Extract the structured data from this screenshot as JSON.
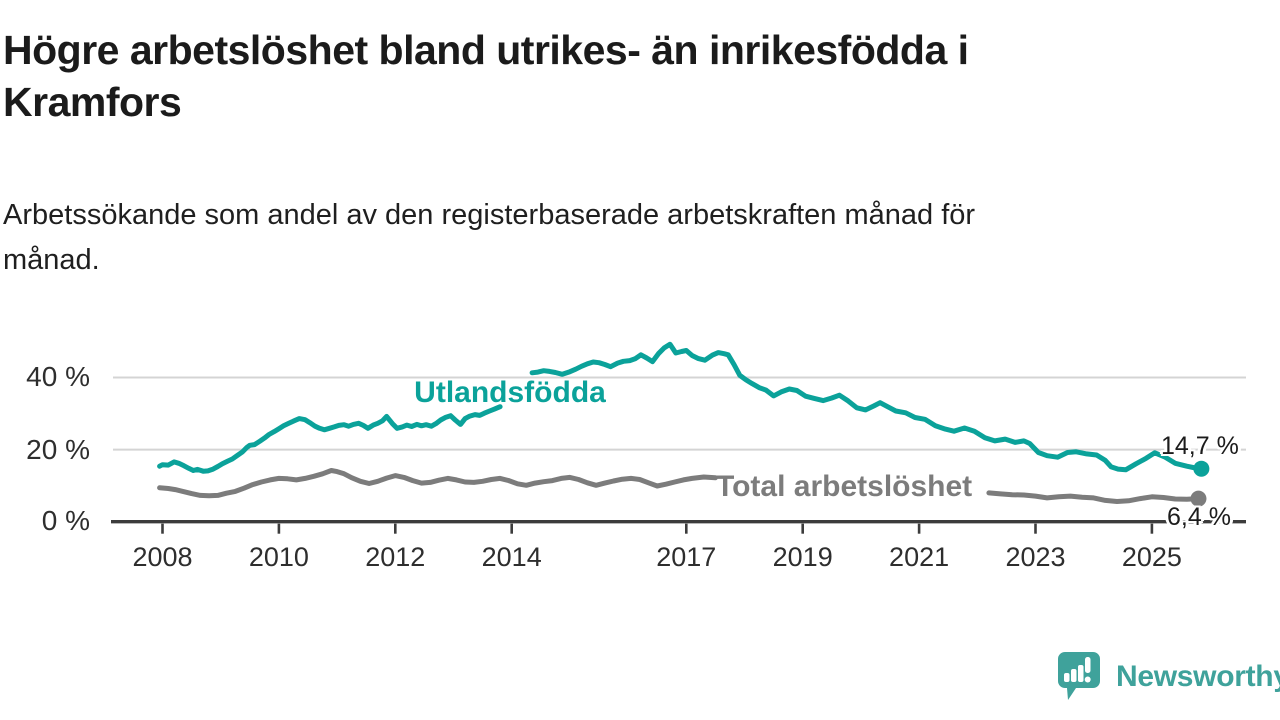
{
  "page": {
    "title_lines": [
      "Högre arbetslöshet bland utrikes- än inrikesfödda i",
      "Kramfors"
    ],
    "subtitle_lines": [
      "Arbetssökande som andel av den registerbaserade arbetskraften månad för",
      "månad."
    ]
  },
  "branding": {
    "logo_text": "Newsworthy",
    "logo_color": "#3fa29b",
    "logo_icon": "speech-bubble-bar-chart-exclamation"
  },
  "colors": {
    "series_foreign": "#0ba29a",
    "series_total": "#7c7c7c",
    "grid": "#d4d4d4",
    "axis": "#3c3c3c",
    "text": "#1c1c1c"
  },
  "chart_data": {
    "type": "line",
    "title": "Högre arbetslöshet bland utrikes- än inrikesfödda i Kramfors",
    "subtitle": "Arbetssökande som andel av den registerbaserade arbetskraften månad för månad.",
    "unit": "%",
    "grid": true,
    "legend_position": "inline-labels",
    "x_axis": {
      "range": [
        2007.6,
        2026.5
      ],
      "ticks": [
        2008,
        2010,
        2012,
        2014,
        2017,
        2019,
        2021,
        2023,
        2025
      ],
      "labels": [
        "2008",
        "2010",
        "2012",
        "2014",
        "2017",
        "2019",
        "2021",
        "2023",
        "2025"
      ]
    },
    "y_axis": {
      "range": [
        0,
        52
      ],
      "ticks": [
        {
          "value": 0,
          "label": "0 %"
        },
        {
          "value": 20,
          "label": "20 %"
        },
        {
          "value": 40,
          "label": "40 %"
        }
      ]
    },
    "series": [
      {
        "name": "Utlandsfödda",
        "color": "#0ba29a",
        "end_label": "14,7 %",
        "end_value": 14.7,
        "last_point": [
          2025.85,
          14.7
        ],
        "segments": [
          [
            [
              2007.95,
              15.4
            ],
            [
              2008.0,
              15.8
            ],
            [
              2008.1,
              15.7
            ],
            [
              2008.2,
              16.6
            ],
            [
              2008.28,
              16.2
            ],
            [
              2008.37,
              15.5
            ],
            [
              2008.45,
              14.8
            ],
            [
              2008.53,
              14.2
            ],
            [
              2008.6,
              14.5
            ],
            [
              2008.7,
              14.0
            ],
            [
              2008.78,
              14.1
            ],
            [
              2008.87,
              14.6
            ],
            [
              2008.95,
              15.3
            ],
            [
              2009.03,
              16.1
            ],
            [
              2009.12,
              16.8
            ],
            [
              2009.2,
              17.4
            ],
            [
              2009.28,
              18.3
            ],
            [
              2009.37,
              19.3
            ],
            [
              2009.45,
              20.6
            ],
            [
              2009.5,
              21.2
            ],
            [
              2009.58,
              21.4
            ],
            [
              2009.67,
              22.3
            ],
            [
              2009.75,
              23.2
            ],
            [
              2009.83,
              24.2
            ],
            [
              2009.92,
              25.0
            ],
            [
              2010.0,
              25.8
            ],
            [
              2010.08,
              26.6
            ],
            [
              2010.17,
              27.3
            ],
            [
              2010.25,
              27.9
            ],
            [
              2010.35,
              28.6
            ],
            [
              2010.45,
              28.3
            ],
            [
              2010.53,
              27.5
            ],
            [
              2010.62,
              26.5
            ],
            [
              2010.7,
              25.9
            ],
            [
              2010.78,
              25.5
            ],
            [
              2010.87,
              25.9
            ],
            [
              2010.95,
              26.3
            ],
            [
              2011.03,
              26.7
            ],
            [
              2011.12,
              26.9
            ],
            [
              2011.2,
              26.5
            ],
            [
              2011.28,
              27.0
            ],
            [
              2011.37,
              27.3
            ],
            [
              2011.45,
              26.7
            ],
            [
              2011.53,
              25.9
            ],
            [
              2011.62,
              26.8
            ],
            [
              2011.7,
              27.3
            ],
            [
              2011.78,
              28.0
            ],
            [
              2011.85,
              29.2
            ],
            [
              2011.95,
              27.2
            ],
            [
              2012.03,
              25.9
            ],
            [
              2012.12,
              26.3
            ],
            [
              2012.2,
              26.8
            ],
            [
              2012.28,
              26.4
            ],
            [
              2012.37,
              27.0
            ],
            [
              2012.45,
              26.6
            ],
            [
              2012.53,
              26.9
            ],
            [
              2012.62,
              26.5
            ],
            [
              2012.7,
              27.2
            ],
            [
              2012.78,
              28.2
            ],
            [
              2012.87,
              29.0
            ],
            [
              2012.95,
              29.4
            ],
            [
              2013.03,
              28.2
            ],
            [
              2013.12,
              27.0
            ],
            [
              2013.2,
              28.6
            ],
            [
              2013.28,
              29.3
            ],
            [
              2013.37,
              29.7
            ],
            [
              2013.45,
              29.5
            ],
            [
              2013.53,
              30.1
            ],
            [
              2013.62,
              30.7
            ],
            [
              2013.7,
              31.2
            ],
            [
              2013.8,
              31.9
            ]
          ],
          [
            [
              2014.35,
              41.3
            ],
            [
              2014.45,
              41.5
            ],
            [
              2014.55,
              41.9
            ],
            [
              2014.65,
              41.7
            ],
            [
              2014.75,
              41.4
            ],
            [
              2014.87,
              40.9
            ],
            [
              2015.0,
              41.6
            ],
            [
              2015.1,
              42.3
            ],
            [
              2015.2,
              43.1
            ],
            [
              2015.3,
              43.8
            ],
            [
              2015.4,
              44.3
            ],
            [
              2015.5,
              44.1
            ],
            [
              2015.6,
              43.6
            ],
            [
              2015.7,
              43.0
            ],
            [
              2015.82,
              44.0
            ],
            [
              2015.92,
              44.5
            ],
            [
              2016.03,
              44.7
            ],
            [
              2016.12,
              45.2
            ],
            [
              2016.22,
              46.3
            ],
            [
              2016.32,
              45.4
            ],
            [
              2016.42,
              44.4
            ],
            [
              2016.52,
              46.6
            ],
            [
              2016.62,
              48.2
            ],
            [
              2016.72,
              49.2
            ],
            [
              2016.82,
              46.8
            ],
            [
              2016.92,
              47.2
            ],
            [
              2017.0,
              47.5
            ],
            [
              2017.1,
              46.1
            ],
            [
              2017.2,
              45.3
            ],
            [
              2017.32,
              44.8
            ],
            [
              2017.45,
              46.2
            ],
            [
              2017.55,
              46.9
            ],
            [
              2017.65,
              46.6
            ],
            [
              2017.72,
              46.3
            ],
            [
              2017.82,
              43.6
            ],
            [
              2017.92,
              40.6
            ],
            [
              2018.03,
              39.3
            ],
            [
              2018.13,
              38.3
            ],
            [
              2018.25,
              37.2
            ],
            [
              2018.37,
              36.5
            ],
            [
              2018.5,
              34.9
            ],
            [
              2018.63,
              36.0
            ],
            [
              2018.77,
              36.8
            ],
            [
              2018.9,
              36.4
            ],
            [
              2019.05,
              34.8
            ],
            [
              2019.2,
              34.2
            ],
            [
              2019.35,
              33.6
            ],
            [
              2019.5,
              34.3
            ],
            [
              2019.63,
              35.1
            ],
            [
              2019.78,
              33.5
            ],
            [
              2019.93,
              31.6
            ],
            [
              2020.08,
              31.0
            ],
            [
              2020.22,
              32.1
            ],
            [
              2020.33,
              33.0
            ],
            [
              2020.47,
              31.8
            ],
            [
              2020.6,
              30.7
            ],
            [
              2020.77,
              30.2
            ],
            [
              2020.93,
              28.9
            ],
            [
              2021.1,
              28.4
            ],
            [
              2021.28,
              26.6
            ],
            [
              2021.45,
              25.7
            ],
            [
              2021.6,
              25.1
            ],
            [
              2021.78,
              26.0
            ],
            [
              2021.95,
              25.1
            ],
            [
              2022.13,
              23.3
            ],
            [
              2022.3,
              22.4
            ],
            [
              2022.48,
              22.9
            ],
            [
              2022.65,
              22.0
            ],
            [
              2022.8,
              22.4
            ],
            [
              2022.9,
              21.7
            ],
            [
              2023.05,
              19.2
            ],
            [
              2023.2,
              18.3
            ],
            [
              2023.38,
              17.9
            ],
            [
              2023.55,
              19.2
            ],
            [
              2023.7,
              19.4
            ],
            [
              2023.88,
              18.8
            ],
            [
              2024.05,
              18.5
            ],
            [
              2024.2,
              17.0
            ],
            [
              2024.3,
              15.2
            ],
            [
              2024.42,
              14.6
            ],
            [
              2024.55,
              14.4
            ],
            [
              2024.73,
              16.1
            ],
            [
              2024.9,
              17.6
            ],
            [
              2025.05,
              19.1
            ],
            [
              2025.23,
              17.9
            ],
            [
              2025.4,
              16.2
            ],
            [
              2025.6,
              15.4
            ],
            [
              2025.75,
              14.9
            ],
            [
              2025.85,
              14.7
            ]
          ]
        ]
      },
      {
        "name": "Total arbetslöshet",
        "color": "#7c7c7c",
        "end_label": "6,4 %",
        "end_value": 6.4,
        "last_point": [
          2025.8,
          6.4
        ],
        "segments": [
          [
            [
              2007.95,
              9.4
            ],
            [
              2008.1,
              9.2
            ],
            [
              2008.22,
              8.9
            ],
            [
              2008.35,
              8.4
            ],
            [
              2008.5,
              7.8
            ],
            [
              2008.65,
              7.3
            ],
            [
              2008.8,
              7.2
            ],
            [
              2008.95,
              7.3
            ],
            [
              2009.1,
              7.9
            ],
            [
              2009.25,
              8.4
            ],
            [
              2009.4,
              9.3
            ],
            [
              2009.55,
              10.3
            ],
            [
              2009.7,
              11.0
            ],
            [
              2009.85,
              11.6
            ],
            [
              2010.0,
              12.0
            ],
            [
              2010.15,
              11.9
            ],
            [
              2010.3,
              11.6
            ],
            [
              2010.45,
              12.0
            ],
            [
              2010.6,
              12.6
            ],
            [
              2010.75,
              13.3
            ],
            [
              2010.9,
              14.2
            ],
            [
              2011.0,
              13.9
            ],
            [
              2011.12,
              13.3
            ],
            [
              2011.25,
              12.2
            ],
            [
              2011.4,
              11.2
            ],
            [
              2011.55,
              10.6
            ],
            [
              2011.7,
              11.2
            ],
            [
              2011.85,
              12.1
            ],
            [
              2012.0,
              12.8
            ],
            [
              2012.15,
              12.3
            ],
            [
              2012.3,
              11.4
            ],
            [
              2012.45,
              10.7
            ],
            [
              2012.6,
              10.9
            ],
            [
              2012.75,
              11.5
            ],
            [
              2012.9,
              12.0
            ],
            [
              2013.05,
              11.6
            ],
            [
              2013.2,
              11.0
            ],
            [
              2013.35,
              10.9
            ],
            [
              2013.5,
              11.2
            ],
            [
              2013.65,
              11.7
            ],
            [
              2013.8,
              12.0
            ],
            [
              2013.95,
              11.4
            ],
            [
              2014.1,
              10.5
            ],
            [
              2014.25,
              10.1
            ],
            [
              2014.4,
              10.7
            ],
            [
              2014.55,
              11.1
            ],
            [
              2014.7,
              11.4
            ],
            [
              2014.85,
              12.0
            ],
            [
              2015.0,
              12.3
            ],
            [
              2015.15,
              11.7
            ],
            [
              2015.3,
              10.8
            ],
            [
              2015.45,
              10.1
            ],
            [
              2015.6,
              10.7
            ],
            [
              2015.75,
              11.3
            ],
            [
              2015.9,
              11.8
            ],
            [
              2016.05,
              12.0
            ],
            [
              2016.2,
              11.7
            ],
            [
              2016.35,
              10.8
            ],
            [
              2016.5,
              9.9
            ],
            [
              2016.65,
              10.4
            ],
            [
              2016.8,
              11.0
            ],
            [
              2016.95,
              11.6
            ],
            [
              2017.1,
              12.0
            ],
            [
              2017.3,
              12.4
            ],
            [
              2017.5,
              12.2
            ]
          ],
          [
            [
              2022.2,
              8.0
            ],
            [
              2022.4,
              7.7
            ],
            [
              2022.6,
              7.5
            ],
            [
              2022.8,
              7.4
            ],
            [
              2023.0,
              7.1
            ],
            [
              2023.2,
              6.6
            ],
            [
              2023.4,
              6.9
            ],
            [
              2023.6,
              7.1
            ],
            [
              2023.8,
              6.8
            ],
            [
              2024.0,
              6.6
            ],
            [
              2024.2,
              5.9
            ],
            [
              2024.4,
              5.6
            ],
            [
              2024.6,
              5.8
            ],
            [
              2024.8,
              6.4
            ],
            [
              2025.0,
              6.9
            ],
            [
              2025.2,
              6.7
            ],
            [
              2025.4,
              6.3
            ],
            [
              2025.6,
              6.2
            ],
            [
              2025.8,
              6.4
            ]
          ]
        ]
      }
    ]
  }
}
